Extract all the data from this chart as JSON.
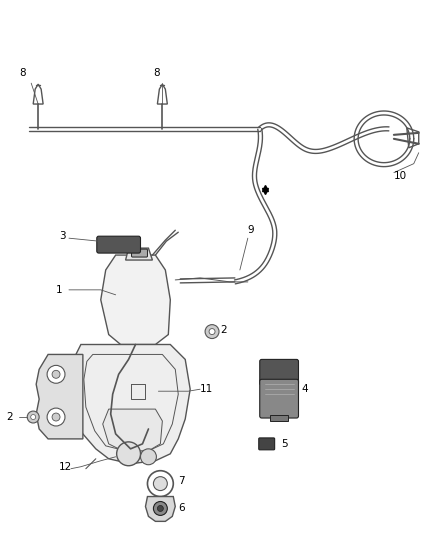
{
  "background_color": "#ffffff",
  "line_color": "#555555",
  "dark_color": "#222222",
  "fig_width": 4.38,
  "fig_height": 5.33,
  "dpi": 100
}
